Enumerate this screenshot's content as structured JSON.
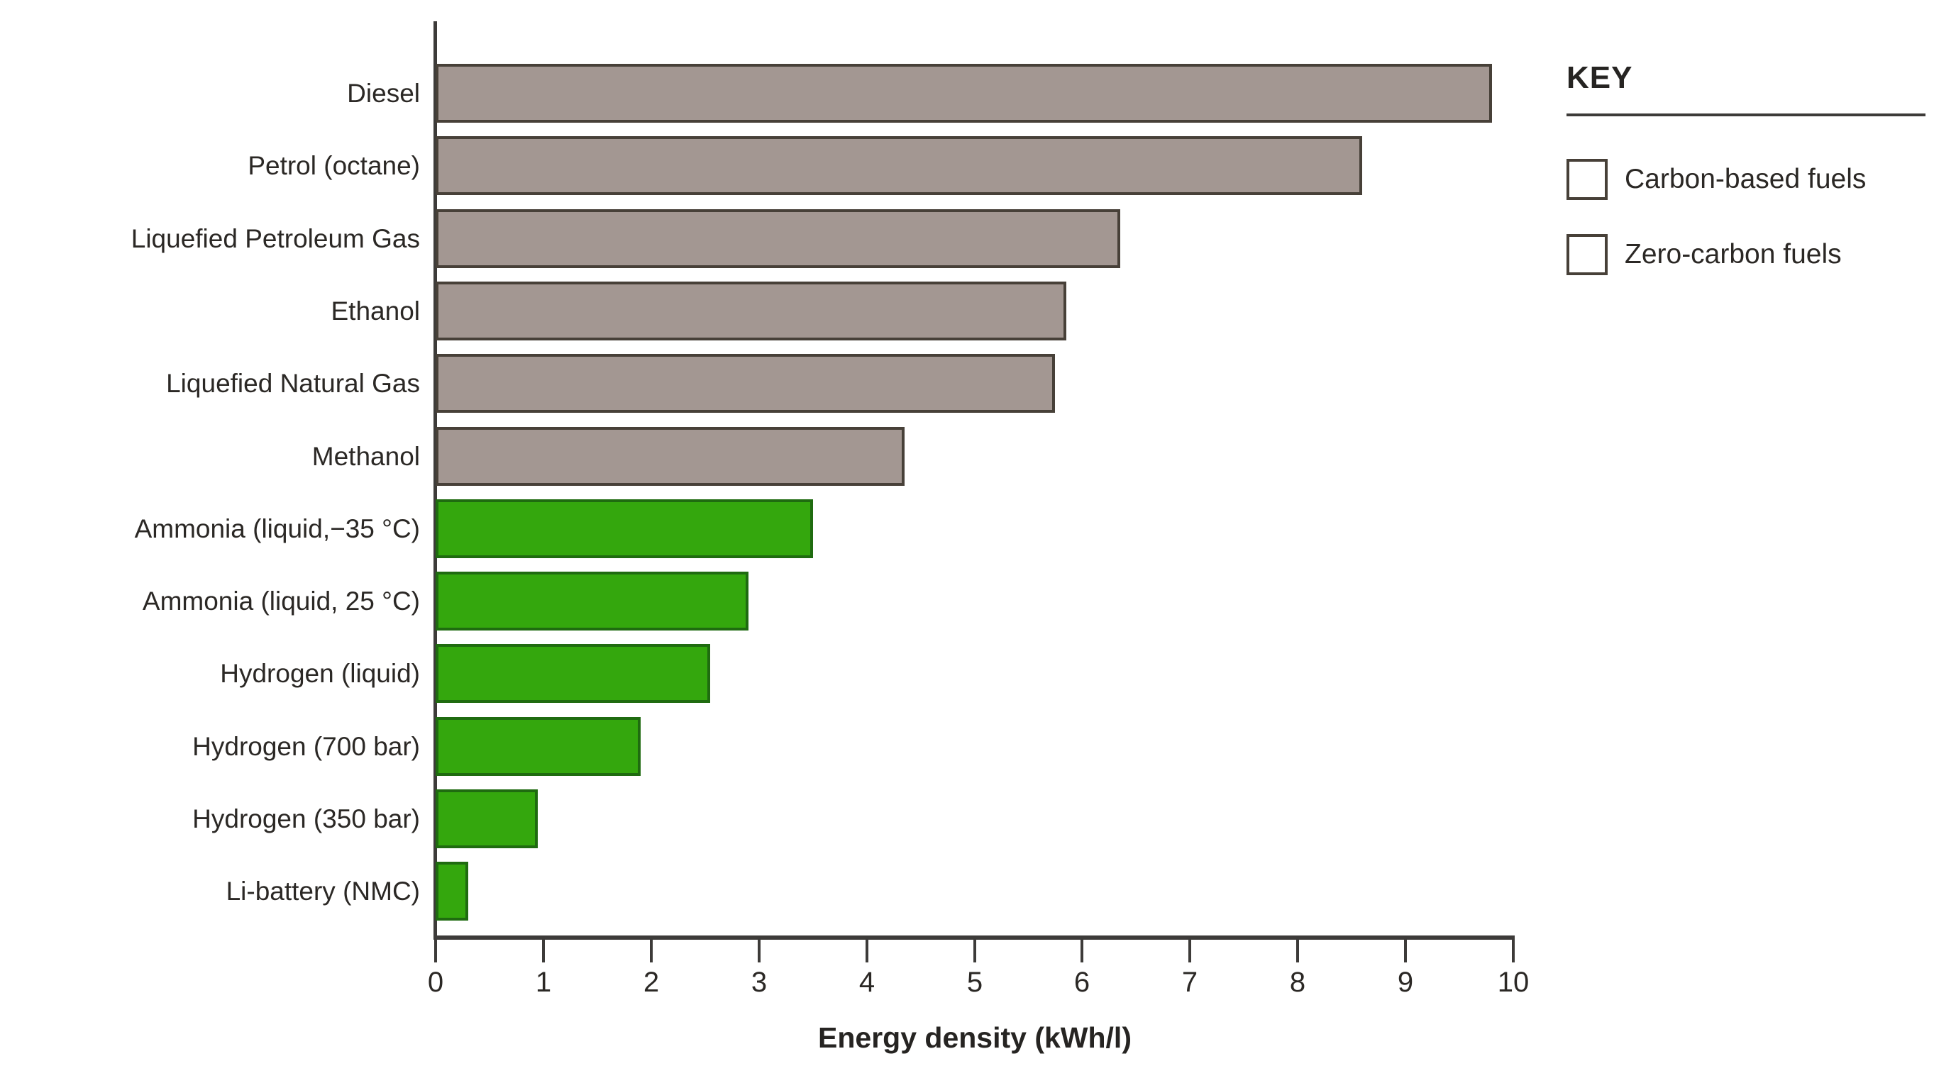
{
  "chart_data": {
    "type": "bar",
    "orientation": "horizontal",
    "title": "",
    "xlabel": "Energy density (kWh/l)",
    "ylabel": "",
    "xlim": [
      0,
      10
    ],
    "xticks": [
      0,
      1,
      2,
      3,
      4,
      5,
      6,
      7,
      8,
      9,
      10
    ],
    "grid": false,
    "categories": [
      "Diesel",
      "Petrol (octane)",
      "Liquefied Petroleum Gas",
      "Ethanol",
      "Liquefied Natural Gas",
      "Methanol",
      "Ammonia (liquid,−35 °C)",
      "Ammonia (liquid, 25 °C)",
      "Hydrogen (liquid)",
      "Hydrogen (700 bar)",
      "Hydrogen (350 bar)",
      "Li-battery (NMC)"
    ],
    "values": [
      9.8,
      8.6,
      6.35,
      5.85,
      5.75,
      4.35,
      3.5,
      2.9,
      2.55,
      1.9,
      0.95,
      0.3
    ],
    "groups": [
      "carbon",
      "carbon",
      "carbon",
      "carbon",
      "carbon",
      "carbon",
      "zero",
      "zero",
      "zero",
      "zero",
      "zero",
      "zero"
    ],
    "legend": {
      "title": "KEY",
      "position": "top-right",
      "entries": [
        {
          "id": "carbon",
          "label": "Carbon-based fuels",
          "color": "#a39792",
          "border": "#474038"
        },
        {
          "id": "zero",
          "label": "Zero-carbon fuels",
          "color": "#34a70d",
          "border": "#1f6b10"
        }
      ]
    }
  }
}
